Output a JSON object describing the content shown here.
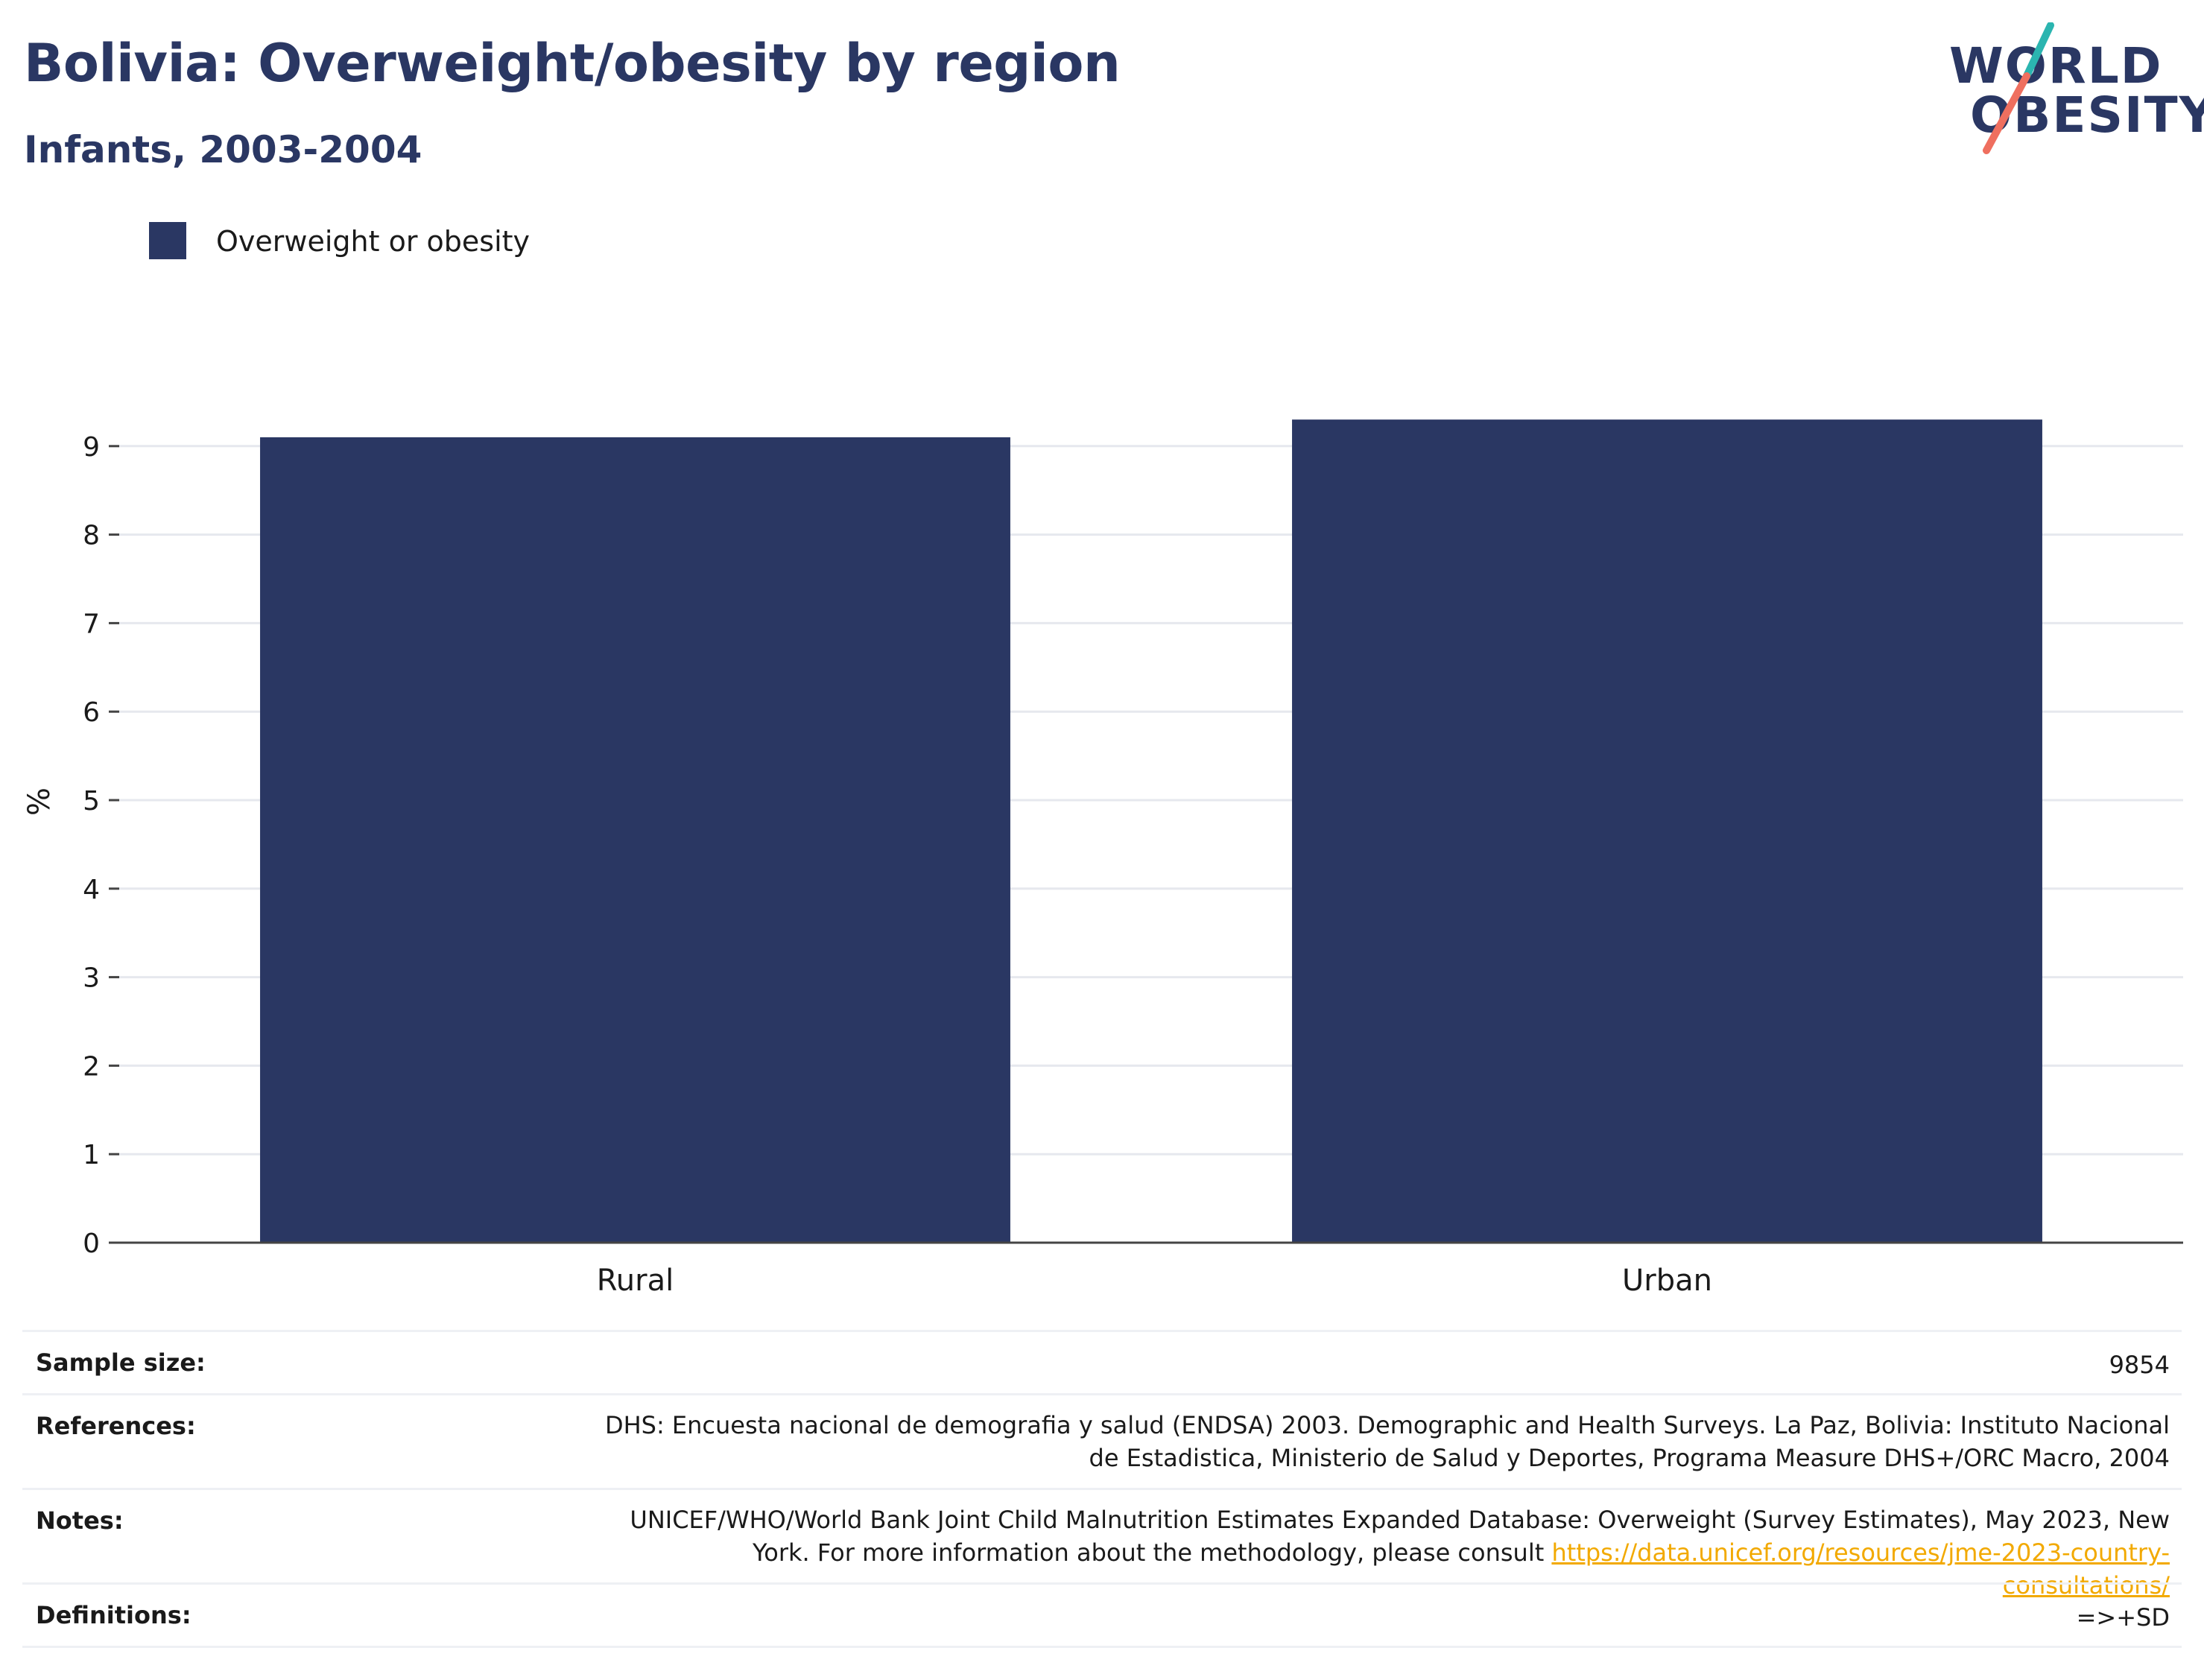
{
  "header": {
    "title": "Bolivia: Overweight/obesity by region",
    "subtitle": "Infants, 2003-2004",
    "logo_line1": "WORLD",
    "logo_line2": "OBESITY"
  },
  "colors": {
    "bar": "#2a3763",
    "grid": "#e6e8ee",
    "axis": "#444444",
    "logo_teal": "#2bb5b0",
    "logo_coral": "#ef6f5f",
    "link": "#f2a900"
  },
  "chart_data": {
    "type": "bar",
    "categories": [
      "Rural",
      "Urban"
    ],
    "series": [
      {
        "name": "Overweight or obesity",
        "values": [
          9.1,
          9.3
        ]
      }
    ],
    "ylabel": "%",
    "ylim": [
      0,
      9.6
    ],
    "yticks": [
      "0",
      "1",
      "2",
      "3",
      "4",
      "5",
      "6",
      "7",
      "8",
      "9"
    ],
    "grid": true,
    "legend": "top-left"
  },
  "info_table": {
    "sample_size_label": "Sample size:",
    "sample_size_value": "9854",
    "references_label": "References:",
    "references_value": "DHS: Encuesta nacional de demografia y salud (ENDSA) 2003. Demographic and Health Surveys. La Paz, Bolivia: Instituto Nacional de Estadistica, Ministerio de Salud y Deportes, Programa Measure DHS+/ORC Macro, 2004",
    "notes_label": "Notes:",
    "notes_value": "UNICEF/WHO/World Bank Joint Child Malnutrition Estimates Expanded Database: Overweight (Survey Estimates), May 2023, New York. For more information about the methodology, please consult",
    "notes_link": "https://data.unicef.org/resources/jme-2023-country-consultations/",
    "definitions_label": "Definitions:",
    "definitions_value": "=>+SD"
  }
}
